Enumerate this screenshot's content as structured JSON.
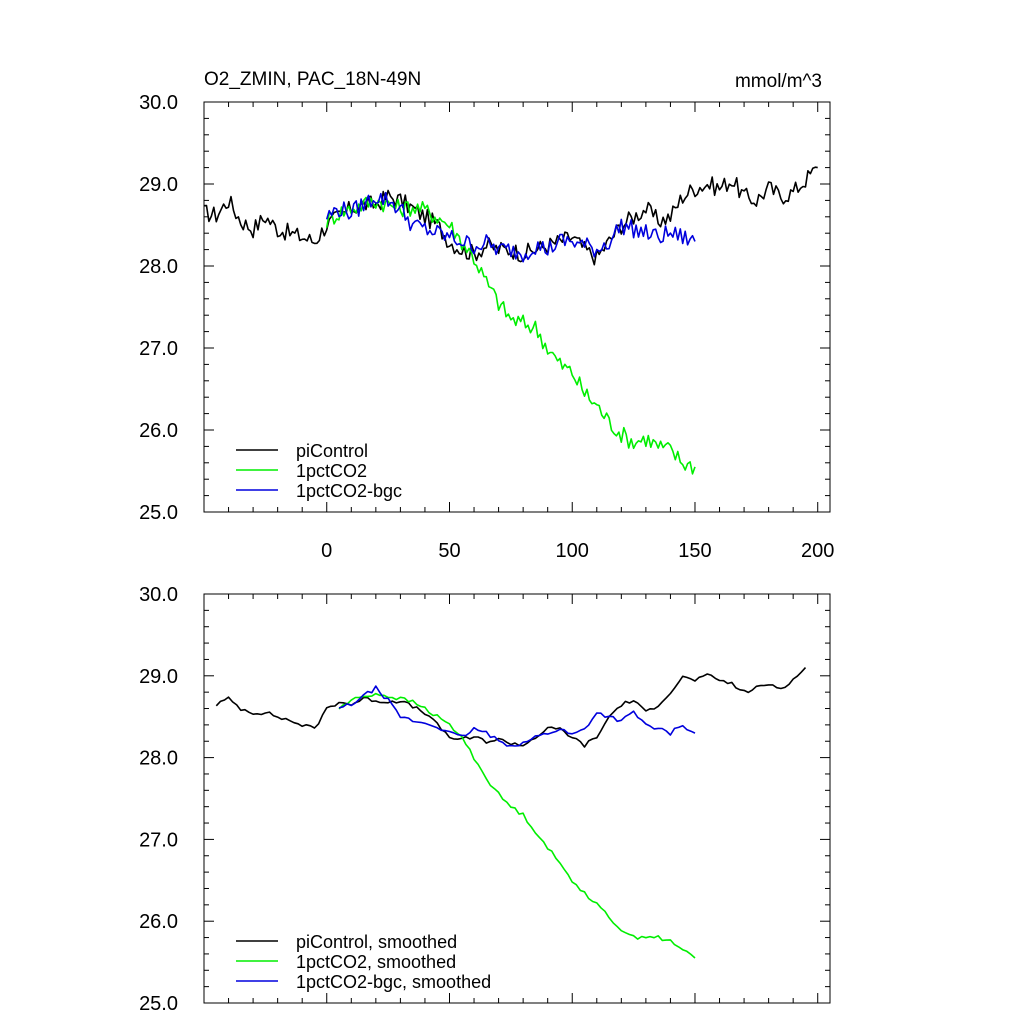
{
  "chart_data": [
    {
      "type": "line",
      "title": "O2_ZMIN, PAC_18N-49N",
      "units": "mmol/m^3",
      "xlim": [
        -50,
        205
      ],
      "ylim": [
        25.0,
        30.0
      ],
      "yticks": [
        "30.0",
        "29.0",
        "28.0",
        "27.0",
        "26.0",
        "25.0"
      ],
      "xticks": [
        "0",
        "50",
        "100",
        "150",
        "200"
      ],
      "legend_position": "bottom-left",
      "series": [
        {
          "name": "piControl",
          "color": "#000000",
          "x": [
            -50,
            -45,
            -40,
            -35,
            -30,
            -25,
            -20,
            -15,
            -10,
            -5,
            0,
            5,
            10,
            15,
            20,
            25,
            30,
            35,
            40,
            45,
            50,
            55,
            60,
            65,
            70,
            75,
            80,
            85,
            90,
            95,
            100,
            105,
            110,
            115,
            120,
            125,
            130,
            135,
            140,
            145,
            150,
            155,
            160,
            165,
            170,
            175,
            180,
            185,
            190,
            195,
            200
          ],
          "y": [
            28.65,
            28.62,
            28.8,
            28.55,
            28.45,
            28.6,
            28.45,
            28.4,
            28.35,
            28.3,
            28.5,
            28.6,
            28.7,
            28.75,
            28.75,
            28.85,
            28.8,
            28.7,
            28.6,
            28.5,
            28.3,
            28.2,
            28.15,
            28.25,
            28.2,
            28.2,
            28.15,
            28.2,
            28.25,
            28.3,
            28.35,
            28.2,
            28.1,
            28.3,
            28.5,
            28.6,
            28.7,
            28.55,
            28.6,
            28.85,
            28.95,
            29.0,
            28.95,
            29.05,
            28.85,
            28.8,
            28.95,
            28.85,
            28.9,
            29.05,
            29.2
          ]
        },
        {
          "name": "1pctCO2",
          "color": "#00ee00",
          "x": [
            0,
            5,
            10,
            15,
            20,
            25,
            30,
            35,
            40,
            45,
            50,
            55,
            60,
            65,
            70,
            75,
            80,
            85,
            90,
            95,
            100,
            105,
            110,
            115,
            120,
            125,
            130,
            135,
            140,
            145,
            150
          ],
          "y": [
            28.55,
            28.65,
            28.7,
            28.75,
            28.8,
            28.75,
            28.7,
            28.72,
            28.68,
            28.6,
            28.5,
            28.3,
            28.1,
            27.8,
            27.55,
            27.35,
            27.3,
            27.25,
            27.0,
            26.8,
            26.7,
            26.45,
            26.3,
            26.1,
            25.95,
            25.85,
            25.9,
            25.8,
            25.75,
            25.6,
            25.55
          ]
        },
        {
          "name": "1pctCO2-bgc",
          "color": "#0000dd",
          "x": [
            0,
            5,
            10,
            15,
            20,
            25,
            30,
            35,
            40,
            45,
            50,
            55,
            60,
            65,
            70,
            75,
            80,
            85,
            90,
            95,
            100,
            105,
            110,
            115,
            120,
            125,
            130,
            135,
            140,
            145,
            150
          ],
          "y": [
            28.6,
            28.7,
            28.65,
            28.75,
            28.85,
            28.8,
            28.7,
            28.5,
            28.45,
            28.4,
            28.35,
            28.3,
            28.25,
            28.28,
            28.2,
            28.2,
            28.15,
            28.25,
            28.2,
            28.3,
            28.3,
            28.25,
            28.2,
            28.3,
            28.5,
            28.45,
            28.4,
            28.35,
            28.4,
            28.35,
            28.3
          ]
        }
      ]
    },
    {
      "type": "line",
      "ylim": [
        25.0,
        30.0
      ],
      "xlim": [
        -50,
        205
      ],
      "yticks": [
        "30.0",
        "29.0",
        "28.0",
        "27.0",
        "26.0",
        "25.0"
      ],
      "legend_position": "bottom-left",
      "series": [
        {
          "name": "piControl, smoothed",
          "color": "#000000",
          "x": [
            -45,
            -40,
            -35,
            -30,
            -25,
            -20,
            -15,
            -10,
            -5,
            0,
            5,
            10,
            15,
            20,
            25,
            30,
            35,
            40,
            45,
            50,
            55,
            60,
            65,
            70,
            75,
            80,
            85,
            90,
            95,
            100,
            105,
            110,
            115,
            120,
            125,
            130,
            135,
            140,
            145,
            150,
            155,
            160,
            165,
            170,
            175,
            180,
            185,
            190,
            195
          ],
          "y": [
            28.65,
            28.72,
            28.6,
            28.55,
            28.55,
            28.5,
            28.45,
            28.4,
            28.35,
            28.6,
            28.68,
            28.65,
            28.72,
            28.7,
            28.68,
            28.7,
            28.62,
            28.55,
            28.4,
            28.25,
            28.22,
            28.25,
            28.2,
            28.22,
            28.18,
            28.15,
            28.25,
            28.35,
            28.35,
            28.25,
            28.15,
            28.25,
            28.5,
            28.65,
            28.7,
            28.55,
            28.65,
            28.8,
            28.98,
            28.95,
            29.0,
            28.95,
            28.9,
            28.8,
            28.85,
            28.9,
            28.85,
            28.95,
            29.1
          ]
        },
        {
          "name": "1pctCO2, smoothed",
          "color": "#00ee00",
          "x": [
            5,
            10,
            15,
            20,
            25,
            30,
            35,
            40,
            45,
            50,
            55,
            60,
            65,
            70,
            75,
            80,
            85,
            90,
            95,
            100,
            105,
            110,
            115,
            120,
            125,
            130,
            135,
            140,
            145,
            150
          ],
          "y": [
            28.6,
            28.7,
            28.75,
            28.78,
            28.75,
            28.72,
            28.68,
            28.6,
            28.5,
            28.4,
            28.25,
            28.0,
            27.75,
            27.55,
            27.4,
            27.3,
            27.1,
            26.9,
            26.7,
            26.5,
            26.35,
            26.2,
            26.05,
            25.9,
            25.8,
            25.82,
            25.8,
            25.75,
            25.65,
            25.55
          ]
        },
        {
          "name": "1pctCO2-bgc, smoothed",
          "color": "#0000dd",
          "x": [
            5,
            10,
            15,
            20,
            25,
            30,
            35,
            40,
            45,
            50,
            55,
            60,
            65,
            70,
            75,
            80,
            85,
            90,
            95,
            100,
            105,
            110,
            115,
            120,
            125,
            130,
            135,
            140,
            145,
            150
          ],
          "y": [
            28.6,
            28.65,
            28.75,
            28.85,
            28.7,
            28.5,
            28.45,
            28.42,
            28.38,
            28.3,
            28.25,
            28.35,
            28.3,
            28.2,
            28.15,
            28.18,
            28.25,
            28.3,
            28.35,
            28.28,
            28.35,
            28.55,
            28.5,
            28.45,
            28.55,
            28.4,
            28.35,
            28.3,
            28.4,
            28.3
          ]
        }
      ]
    }
  ]
}
